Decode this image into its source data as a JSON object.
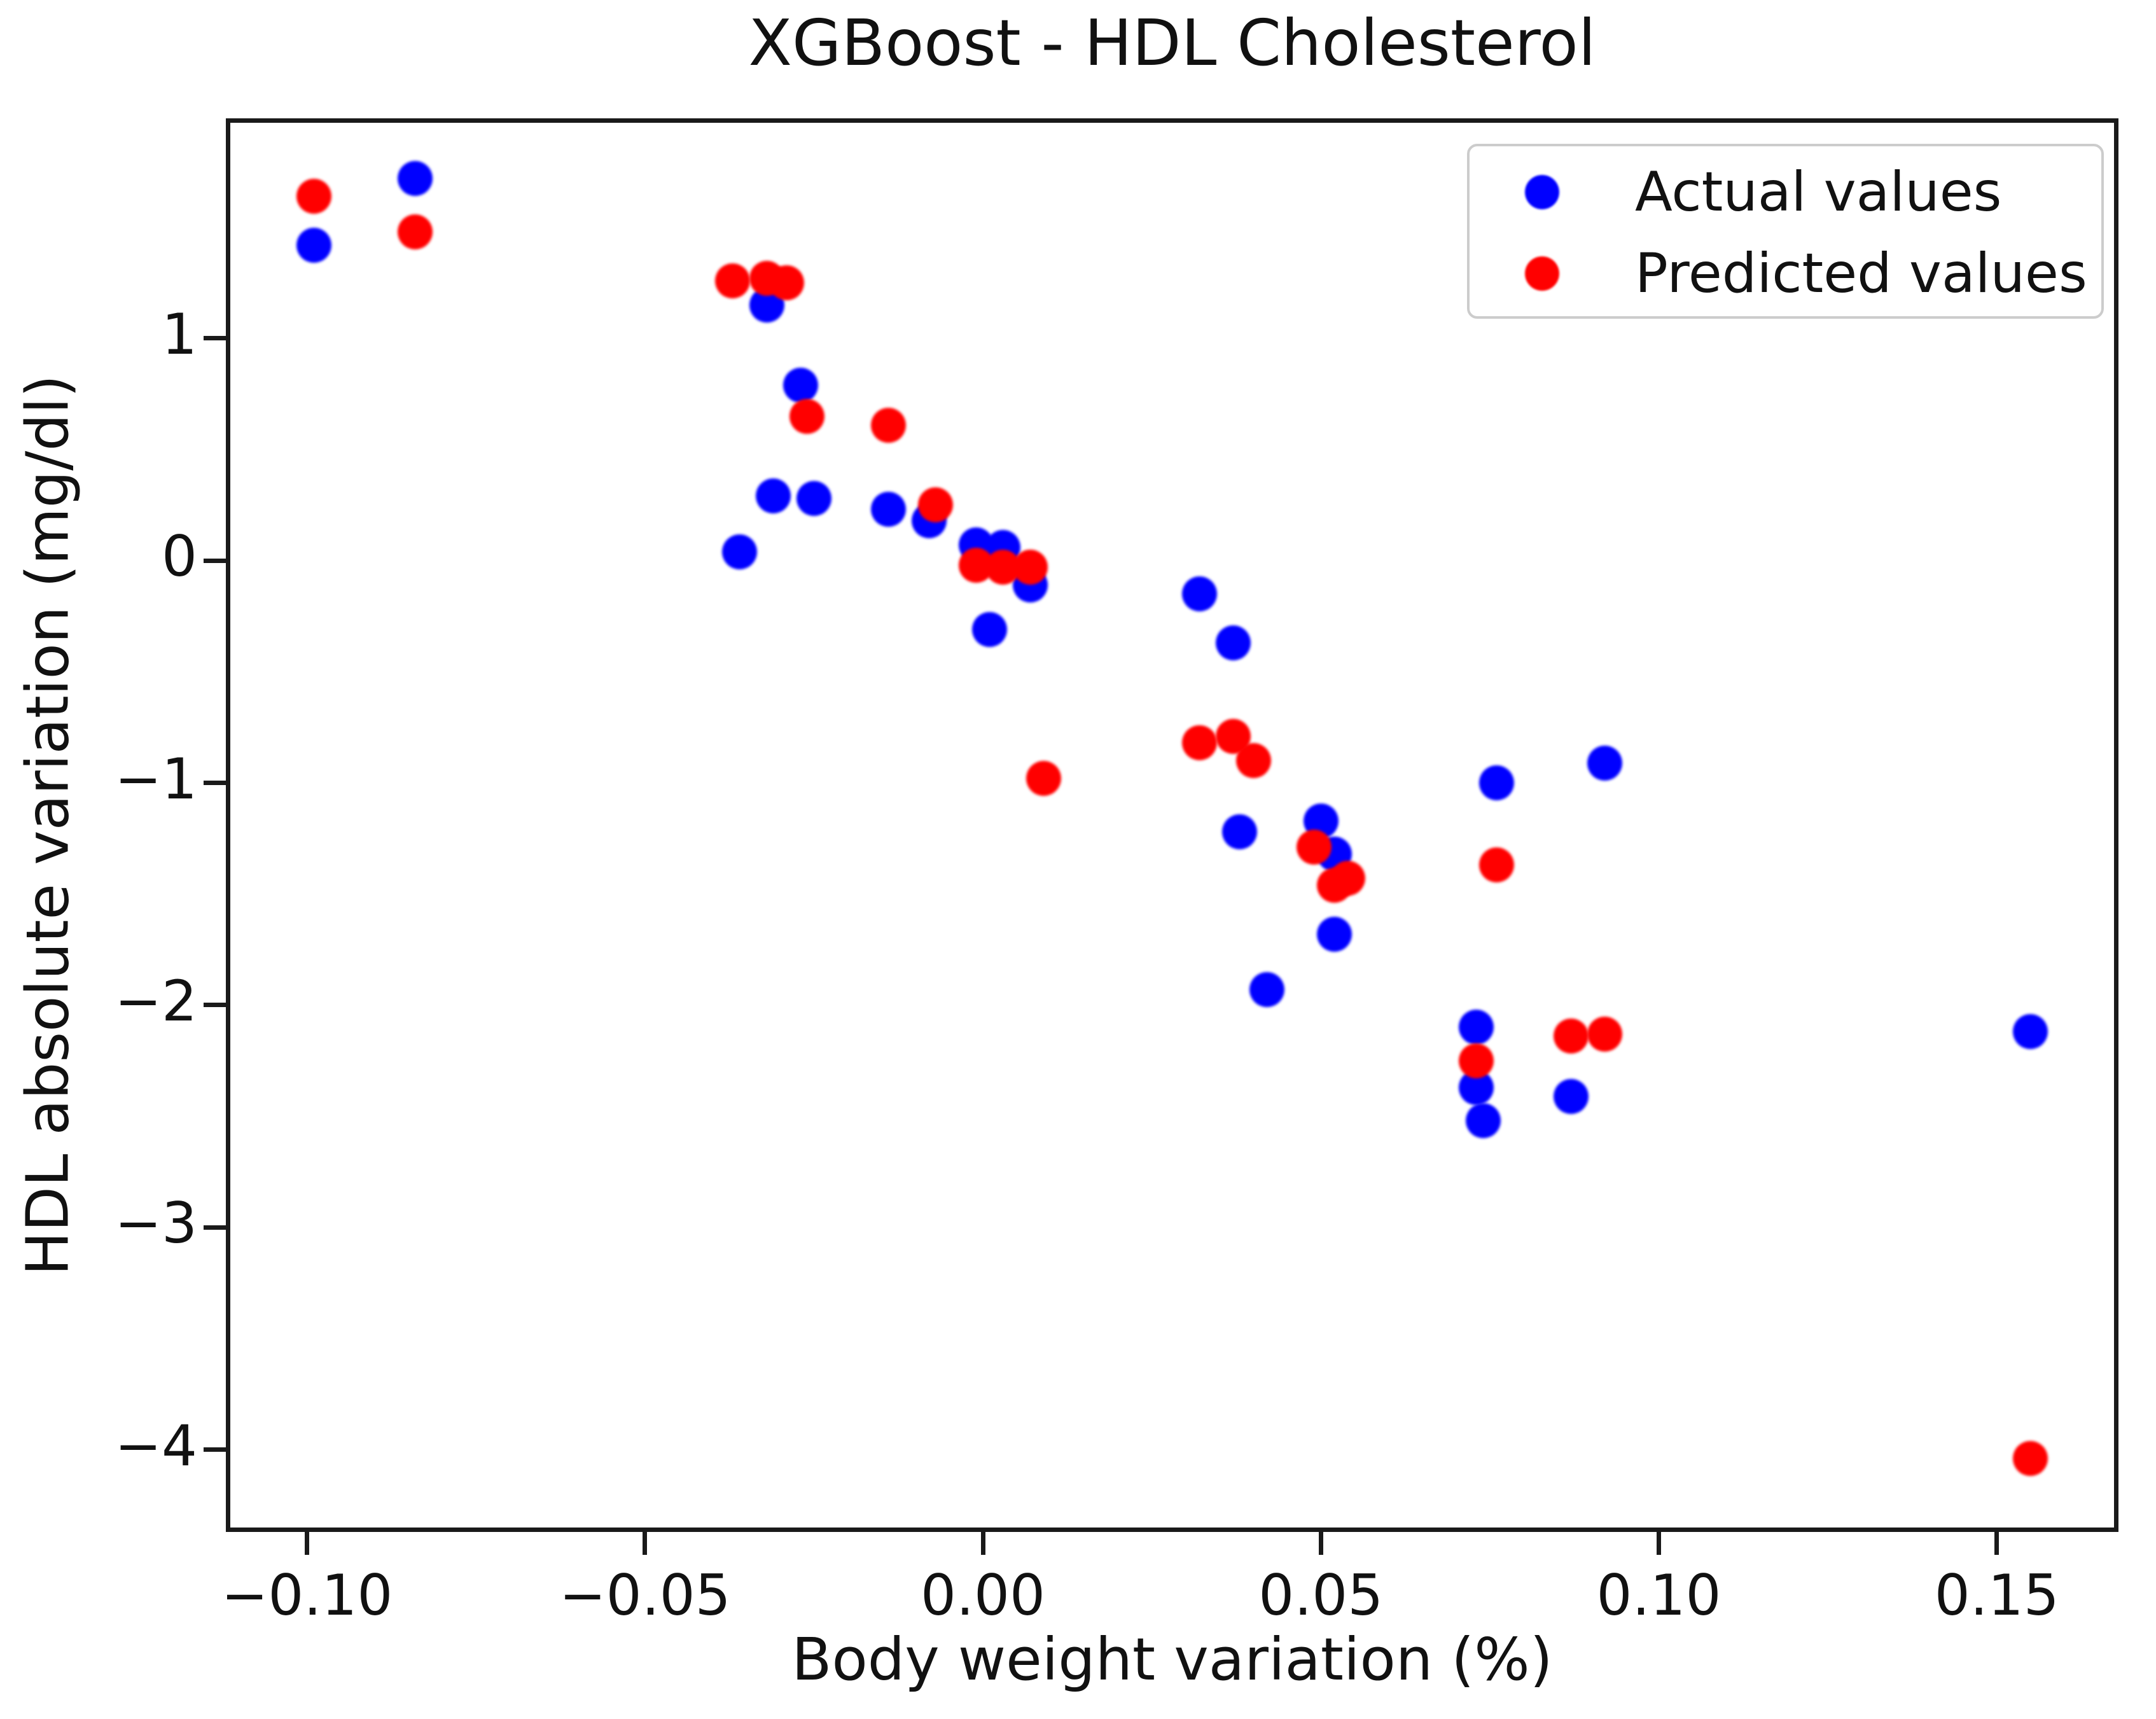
{
  "figure": {
    "title": "XGBoost - HDL Cholesterol",
    "xlabel": "Body weight variation (%)",
    "ylabel": "HDL absolute variation (mg/dl)"
  },
  "legend": {
    "position": "upper right",
    "items": [
      {
        "label": "Actual values",
        "color": "#0000ff"
      },
      {
        "label": "Predicted values",
        "color": "#ff0000"
      }
    ]
  },
  "colors": {
    "actual": "#0000ff",
    "predicted": "#ff0000",
    "axis": "#1a1a1a",
    "background": "#ffffff",
    "legend_border": "#cccccc"
  },
  "chart_data": {
    "type": "scatter",
    "title": "XGBoost - HDL Cholesterol",
    "xlabel": "Body weight variation (%)",
    "ylabel": "HDL absolute variation (mg/dl)",
    "xlim": [
      -0.112,
      0.168
    ],
    "ylim": [
      -4.37,
      1.99
    ],
    "xticks": [
      -0.1,
      -0.05,
      0.0,
      0.05,
      0.1,
      0.15
    ],
    "xtick_labels": [
      "−0.10",
      "−0.05",
      "0.00",
      "0.05",
      "0.10",
      "0.15"
    ],
    "yticks": [
      1,
      0,
      -1,
      -2,
      -3,
      -4
    ],
    "ytick_labels": [
      "1",
      "0",
      "−1",
      "−2",
      "−3",
      "−4"
    ],
    "grid": false,
    "legend_position": "upper right",
    "marker_diameter_px": 55,
    "series": [
      {
        "name": "Actual values",
        "color": "#0000ff",
        "points": [
          [
            -0.099,
            1.42
          ],
          [
            -0.084,
            1.72
          ],
          [
            -0.036,
            0.04
          ],
          [
            -0.032,
            1.15
          ],
          [
            -0.031,
            0.29
          ],
          [
            -0.027,
            0.79
          ],
          [
            -0.025,
            0.28
          ],
          [
            -0.014,
            0.23
          ],
          [
            -0.008,
            0.18
          ],
          [
            -0.001,
            0.07
          ],
          [
            0.003,
            0.06
          ],
          [
            0.007,
            -0.11
          ],
          [
            0.001,
            -0.31
          ],
          [
            0.032,
            -0.15
          ],
          [
            0.037,
            -0.37
          ],
          [
            0.038,
            -1.22
          ],
          [
            0.05,
            -1.17
          ],
          [
            0.052,
            -1.32
          ],
          [
            0.052,
            -1.68
          ],
          [
            0.042,
            -1.93
          ],
          [
            0.076,
            -1.0
          ],
          [
            0.073,
            -2.1
          ],
          [
            0.073,
            -2.37
          ],
          [
            0.074,
            -2.52
          ],
          [
            0.087,
            -2.41
          ],
          [
            0.092,
            -0.91
          ],
          [
            0.155,
            -2.12
          ]
        ]
      },
      {
        "name": "Predicted values",
        "color": "#ff0000",
        "points": [
          [
            -0.099,
            1.64
          ],
          [
            -0.084,
            1.48
          ],
          [
            -0.037,
            1.26
          ],
          [
            -0.032,
            1.27
          ],
          [
            -0.029,
            1.25
          ],
          [
            -0.026,
            0.65
          ],
          [
            -0.014,
            0.61
          ],
          [
            -0.007,
            0.25
          ],
          [
            -0.001,
            -0.02
          ],
          [
            0.003,
            -0.03
          ],
          [
            0.007,
            -0.03
          ],
          [
            0.009,
            -0.98
          ],
          [
            0.032,
            -0.82
          ],
          [
            0.037,
            -0.79
          ],
          [
            0.04,
            -0.9
          ],
          [
            0.049,
            -1.29
          ],
          [
            0.052,
            -1.46
          ],
          [
            0.054,
            -1.43
          ],
          [
            0.076,
            -1.37
          ],
          [
            0.073,
            -2.25
          ],
          [
            0.087,
            -2.14
          ],
          [
            0.092,
            -2.13
          ],
          [
            0.155,
            -4.04
          ]
        ]
      }
    ]
  }
}
